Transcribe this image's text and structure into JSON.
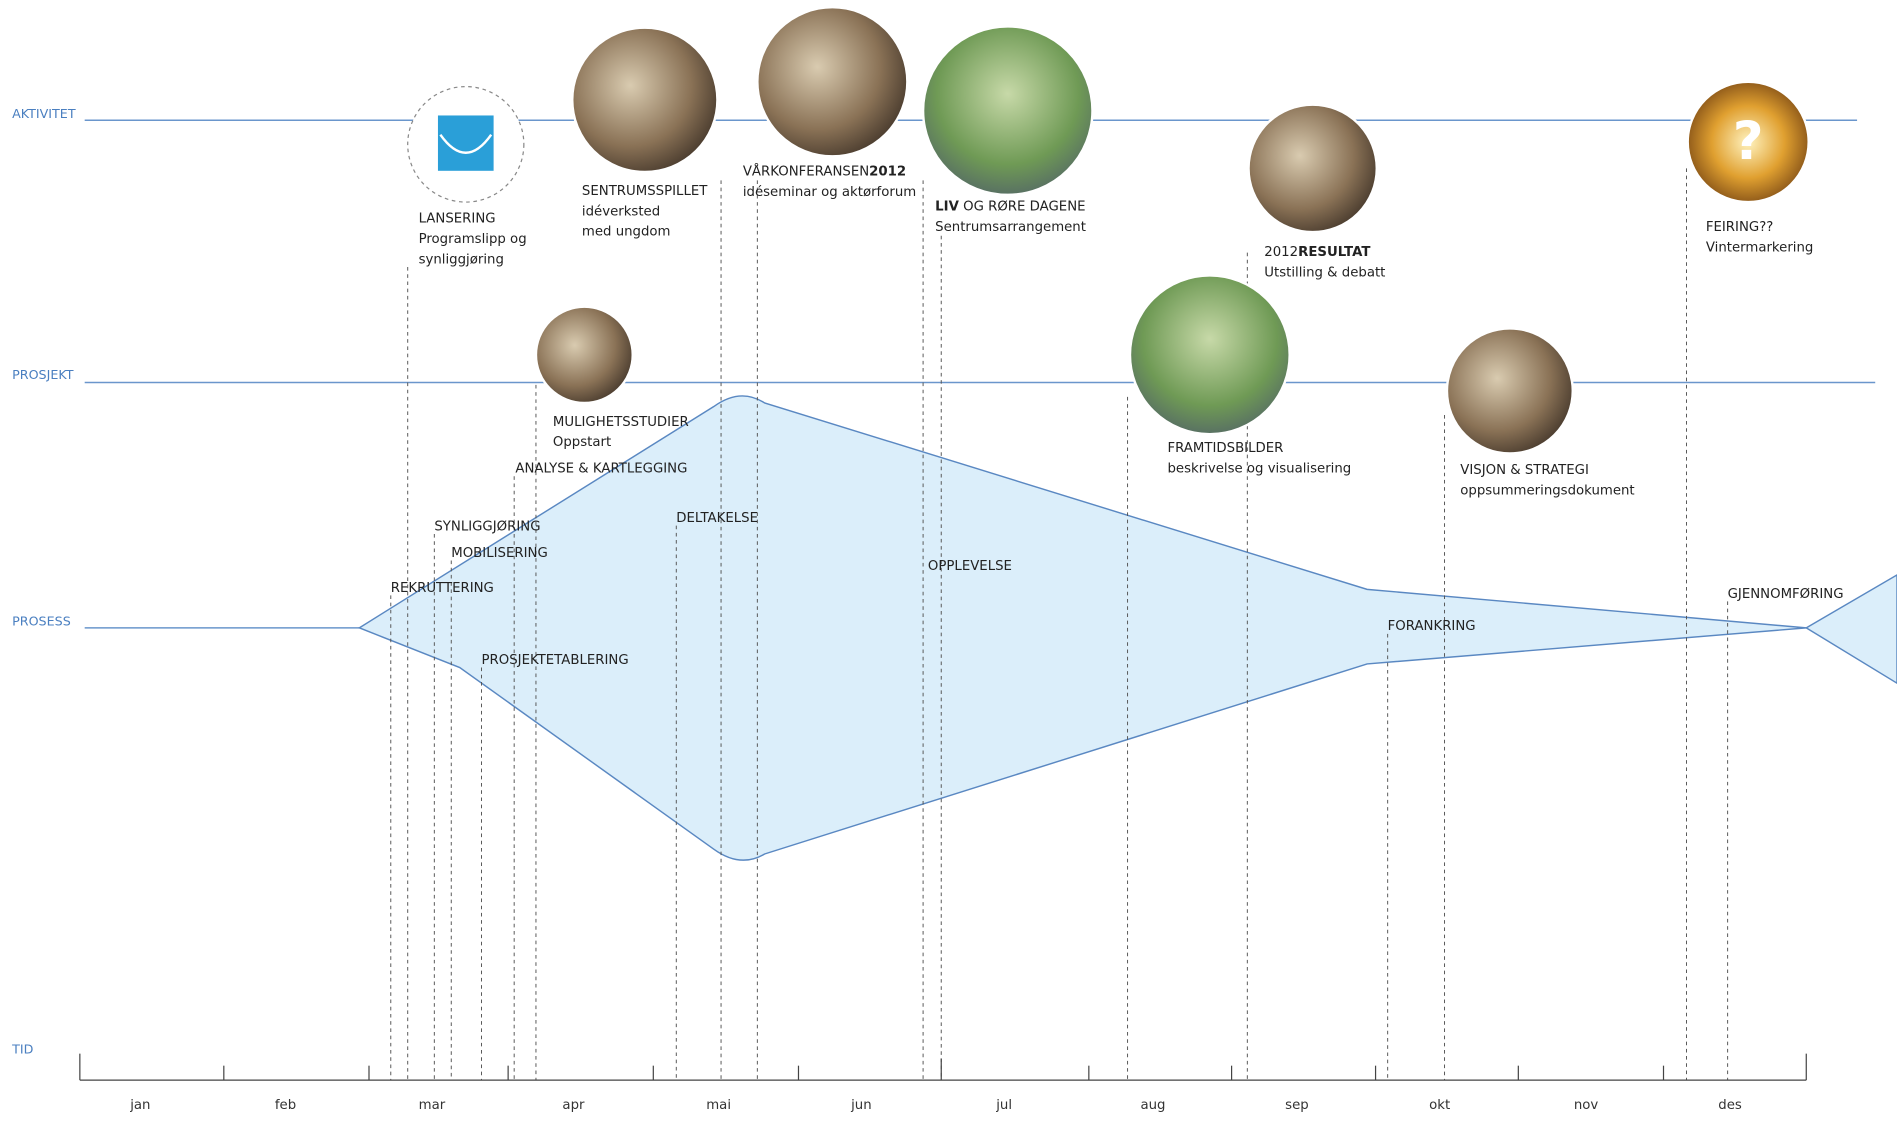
{
  "rows": [
    "AKTIVITET",
    "PROSJEKT",
    "PROSESS",
    "TID"
  ],
  "months": [
    "jan",
    "feb",
    "mar",
    "apr",
    "mai",
    "jun",
    "jul",
    "aug",
    "sep",
    "okt",
    "nov",
    "des"
  ],
  "activities": [
    {
      "title": [
        "LANSERING"
      ],
      "lines": [
        "Programslipp og",
        "synliggjøring"
      ]
    },
    {
      "title": [
        "SENTRUMSSPILLET"
      ],
      "lines": [
        "idéverksted",
        "med ungdom"
      ]
    },
    {
      "title": [
        "VÅRKONFERANSEN",
        "2012"
      ],
      "lines": [
        "idéseminar og aktørforum"
      ]
    },
    {
      "title": [
        "LIV",
        " OG RØRE DAGENE"
      ],
      "lines": [
        "Sentrumsarrangement"
      ]
    },
    {
      "title": [
        "2012",
        "RESULTAT"
      ],
      "lines": [
        "Utstilling & debatt"
      ]
    },
    {
      "title": [
        "FEIRING??"
      ],
      "lines": [
        "Vintermarkering"
      ]
    }
  ],
  "projects": [
    {
      "title": [
        "MULIGHETSSTUDIER"
      ],
      "lines": [
        "Oppstart"
      ]
    },
    {
      "title": [
        "FRAMTIDSBILDER"
      ],
      "lines": [
        "beskrivelse og visualisering"
      ]
    },
    {
      "title": [
        "VISJON & STRATEGI"
      ],
      "lines": [
        "oppsummeringsdokument"
      ]
    }
  ],
  "process": [
    "ANALYSE & KARTLEGGING",
    "SYNLIGGJØRING",
    "MOBILISERING",
    "REKRUTTERING",
    "PROSJEKTETABLERING",
    "DELTAKELSE",
    "OPPLEVELSE",
    "FORANKRING",
    "GJENNOMFØRING"
  ]
}
